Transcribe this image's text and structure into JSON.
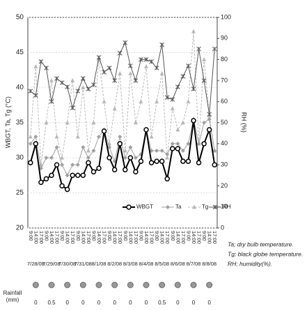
{
  "chart_data": {
    "type": "line",
    "y_label": "WBGT, Ta, Tg (°C)",
    "y2_label": "RH (%)",
    "categories": [
      "9:00",
      "14:00",
      "17:00",
      "9:00",
      "14:00",
      "17:00",
      "9:00",
      "14:00",
      "17:00",
      "9:00",
      "14:00",
      "17:00",
      "9:00",
      "14:00",
      "17:00",
      "9:00",
      "14:00",
      "17:00",
      "9:00",
      "14:00",
      "17:00",
      "9:00",
      "14:00",
      "17:00",
      "9:00",
      "14:00",
      "17:00",
      "9:00",
      "14:00",
      "17:00",
      "9:00",
      "14:00",
      "17:00",
      "9:00",
      "14:00",
      "17:00"
    ],
    "dates": [
      "7/28/08",
      "7/29/08",
      "7/30/08",
      "7/31/08",
      "8/1/08",
      "8/2/08",
      "8/3/08",
      "8/4/08",
      "8/5/08",
      "8/6/08",
      "8/7/08",
      "8/8/08"
    ],
    "series": [
      {
        "name": "WBGT",
        "color": "#000000",
        "marker": "circle",
        "values": [
          29.3,
          32,
          26.5,
          27,
          27.5,
          29,
          26,
          25.5,
          27.5,
          27.5,
          27.5,
          29.3,
          28,
          28.5,
          33.8,
          30,
          28.3,
          32,
          28.3,
          30,
          28,
          29.5,
          34,
          29.3,
          29.5,
          29.5,
          27,
          31.3,
          31.3,
          29.5,
          29.5,
          35.3,
          29.3,
          32,
          34,
          29
        ]
      },
      {
        "name": "Ta",
        "color": "#a0a0a0",
        "marker": "diamond",
        "values": [
          32,
          33,
          28.5,
          30,
          30,
          31.5,
          29,
          27.5,
          29,
          29,
          31.5,
          30,
          31,
          33,
          34,
          31.5,
          29.5,
          33,
          30,
          31.5,
          30,
          30.5,
          34,
          31,
          31,
          31,
          30.5,
          32,
          32,
          31,
          32,
          35.5,
          32,
          35,
          35.5,
          31
        ]
      },
      {
        "name": "Tg",
        "color": "#b8b8b8",
        "marker": "triangle",
        "dashed": true,
        "values": [
          33,
          43,
          29,
          35,
          41,
          33,
          30,
          35,
          41,
          33,
          40,
          31,
          35,
          44,
          38,
          32,
          37,
          42,
          31,
          42,
          35,
          38,
          43,
          33,
          38,
          42,
          30,
          37,
          34,
          35,
          38,
          48,
          32,
          44,
          36,
          31
        ]
      },
      {
        "name": "RH",
        "color": "#555555",
        "marker": "x",
        "axis": "y2",
        "values": [
          65,
          63,
          79,
          76,
          60,
          71,
          69,
          67,
          57,
          65,
          71,
          66,
          68,
          81,
          74,
          76,
          70,
          83,
          88,
          77,
          70,
          80,
          80,
          79,
          76,
          87,
          62,
          61,
          67,
          72,
          77,
          66,
          85,
          70,
          54,
          85
        ]
      }
    ],
    "ylim": [
      20,
      50
    ],
    "yticks": [
      20,
      25,
      30,
      35,
      40,
      45,
      50
    ],
    "y2lim": [
      0,
      100
    ],
    "y2ticks": [
      0,
      10,
      20,
      30,
      40,
      50,
      60,
      70,
      80,
      90,
      100
    ],
    "grid": true,
    "annotations": [
      "Ta; dry bulb temperature.",
      "Tg; black globe temperature.",
      "RH; humidity(%)."
    ],
    "rainfall": {
      "label": "Rainfall",
      "unit": "(mm)",
      "values": [
        "0",
        "0.5",
        "0",
        "0",
        "0",
        "0",
        "0",
        "0",
        "0.5",
        "0",
        "0",
        "0"
      ]
    }
  }
}
